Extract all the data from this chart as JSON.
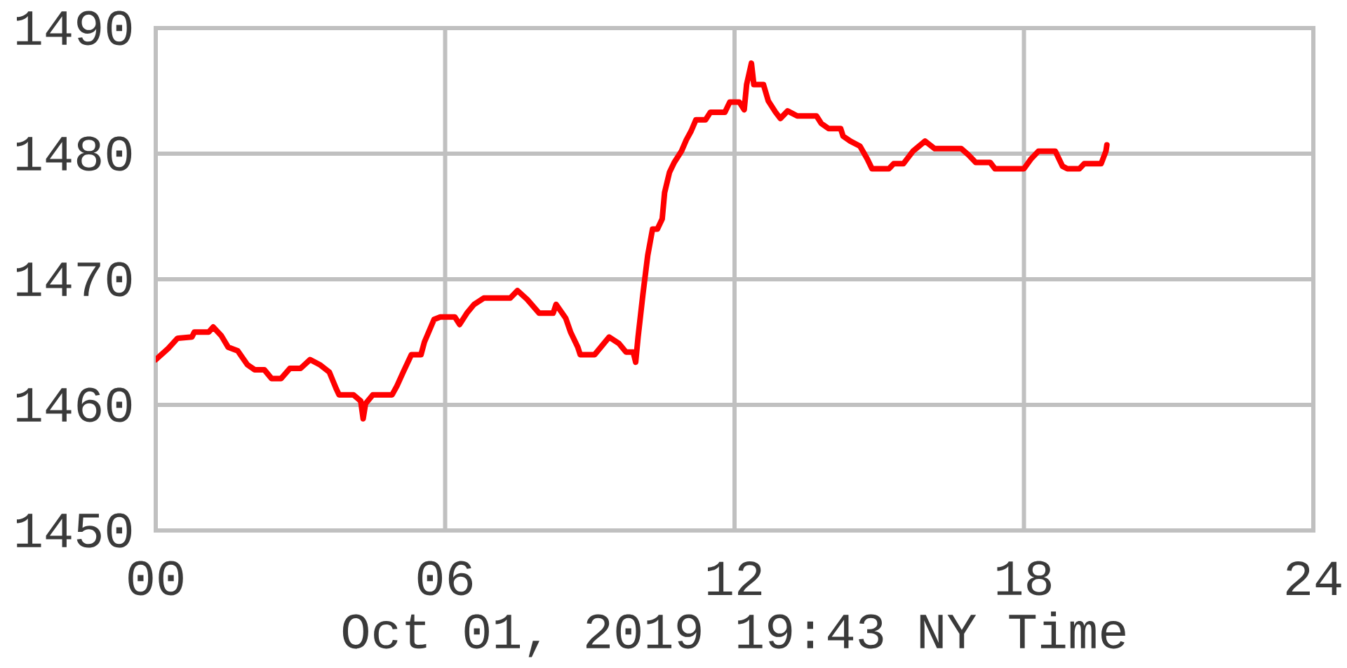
{
  "chart_data": {
    "type": "line",
    "xlabel": "Oct 01, 2019 19:43 NY Time",
    "x": [
      0,
      0.26,
      0.45,
      0.75,
      0.8,
      1.1,
      1.19,
      1.36,
      1.5,
      1.7,
      1.9,
      2.05,
      2.25,
      2.4,
      2.6,
      2.78,
      3.0,
      3.2,
      3.4,
      3.6,
      3.74,
      3.8,
      4.1,
      4.25,
      4.3,
      4.35,
      4.5,
      4.9,
      5.0,
      5.13,
      5.3,
      5.5,
      5.57,
      5.77,
      5.9,
      6.2,
      6.3,
      6.45,
      6.6,
      6.8,
      7.35,
      7.5,
      7.7,
      7.95,
      8.24,
      8.3,
      8.5,
      8.6,
      8.75,
      8.8,
      9.1,
      9.25,
      9.4,
      9.6,
      9.75,
      9.9,
      9.95,
      10.0,
      10.1,
      10.2,
      10.3,
      10.4,
      10.5,
      10.55,
      10.65,
      10.75,
      10.9,
      11.0,
      11.1,
      11.2,
      11.4,
      11.5,
      11.8,
      11.9,
      12.1,
      12.2,
      12.25,
      12.35,
      12.4,
      12.6,
      12.7,
      12.85,
      12.95,
      13.1,
      13.3,
      13.7,
      13.8,
      13.95,
      14.2,
      14.25,
      14.4,
      14.6,
      14.75,
      14.85,
      15.2,
      15.3,
      15.5,
      15.7,
      15.95,
      16.15,
      16.7,
      16.85,
      17.0,
      17.3,
      17.4,
      18.0,
      18.15,
      18.3,
      18.65,
      18.8,
      18.9,
      19.15,
      19.25,
      19.6,
      19.7,
      19.72
    ],
    "values": [
      1463.6,
      1464.5,
      1465.3,
      1465.4,
      1465.8,
      1465.8,
      1466.2,
      1465.5,
      1464.6,
      1464.3,
      1463.2,
      1462.8,
      1462.8,
      1462.1,
      1462.1,
      1462.9,
      1462.9,
      1463.6,
      1463.2,
      1462.6,
      1461.3,
      1460.8,
      1460.8,
      1460.3,
      1458.9,
      1460.1,
      1460.8,
      1460.8,
      1461.5,
      1462.6,
      1464.0,
      1464.0,
      1465.0,
      1466.8,
      1467.0,
      1467.0,
      1466.4,
      1467.3,
      1468.0,
      1468.5,
      1468.5,
      1469.1,
      1468.4,
      1467.3,
      1467.3,
      1468.0,
      1466.9,
      1465.8,
      1464.6,
      1464.0,
      1464.0,
      1464.7,
      1465.4,
      1464.9,
      1464.2,
      1464.2,
      1463.4,
      1465.4,
      1468.8,
      1471.9,
      1474.0,
      1474.0,
      1474.8,
      1476.9,
      1478.5,
      1479.3,
      1480.2,
      1481.1,
      1481.8,
      1482.7,
      1482.7,
      1483.3,
      1483.3,
      1484.1,
      1484.1,
      1483.5,
      1485.5,
      1487.2,
      1485.5,
      1485.5,
      1484.2,
      1483.3,
      1482.8,
      1483.4,
      1483.0,
      1483.0,
      1482.4,
      1482.0,
      1482.0,
      1481.4,
      1481.0,
      1480.6,
      1479.6,
      1478.8,
      1478.8,
      1479.2,
      1479.2,
      1480.2,
      1481.0,
      1480.4,
      1480.4,
      1479.9,
      1479.3,
      1479.3,
      1478.8,
      1478.8,
      1479.6,
      1480.2,
      1480.2,
      1479.0,
      1478.8,
      1478.8,
      1479.2,
      1479.2,
      1480.2,
      1480.7
    ],
    "color": "#ff0000",
    "xlim": [
      0,
      24
    ],
    "xticks": [
      {
        "value": 0,
        "label": "00"
      },
      {
        "value": 6,
        "label": "06"
      },
      12,
      18,
      24
    ],
    "ylim": [
      1450,
      1490
    ],
    "yticks": [
      1450,
      1460,
      1470,
      1480,
      1490
    ],
    "grid": true,
    "marker": "none",
    "line_style": "solid"
  }
}
